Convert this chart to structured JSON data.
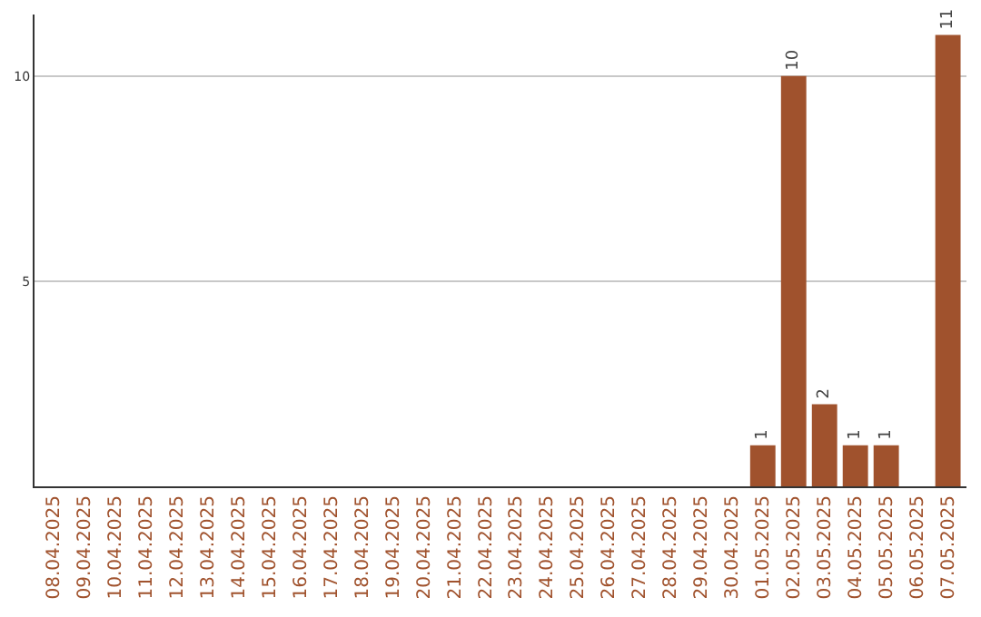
{
  "chart_data": {
    "type": "bar",
    "categories": [
      "08.04.2025",
      "09.04.2025",
      "10.04.2025",
      "11.04.2025",
      "12.04.2025",
      "13.04.2025",
      "14.04.2025",
      "15.04.2025",
      "16.04.2025",
      "17.04.2025",
      "18.04.2025",
      "19.04.2025",
      "20.04.2025",
      "21.04.2025",
      "22.04.2025",
      "23.04.2025",
      "24.04.2025",
      "25.04.2025",
      "26.04.2025",
      "27.04.2025",
      "28.04.2025",
      "29.04.2025",
      "30.04.2025",
      "01.05.2025",
      "02.05.2025",
      "03.05.2025",
      "04.05.2025",
      "05.05.2025",
      "06.05.2025",
      "07.05.2025"
    ],
    "values": [
      0,
      0,
      0,
      0,
      0,
      0,
      0,
      0,
      0,
      0,
      0,
      0,
      0,
      0,
      0,
      0,
      0,
      0,
      0,
      0,
      0,
      0,
      0,
      1,
      10,
      2,
      1,
      1,
      0,
      11
    ],
    "value_labels": [
      null,
      null,
      null,
      null,
      null,
      null,
      null,
      null,
      null,
      null,
      null,
      null,
      null,
      null,
      null,
      null,
      null,
      null,
      null,
      null,
      null,
      null,
      null,
      "1",
      "10",
      "2",
      "1",
      "1",
      null,
      "11"
    ],
    "color": "#a0522d",
    "ylim": [
      0,
      11.5
    ],
    "yticks": [
      5,
      10
    ],
    "grid": "y",
    "legend": false
  }
}
